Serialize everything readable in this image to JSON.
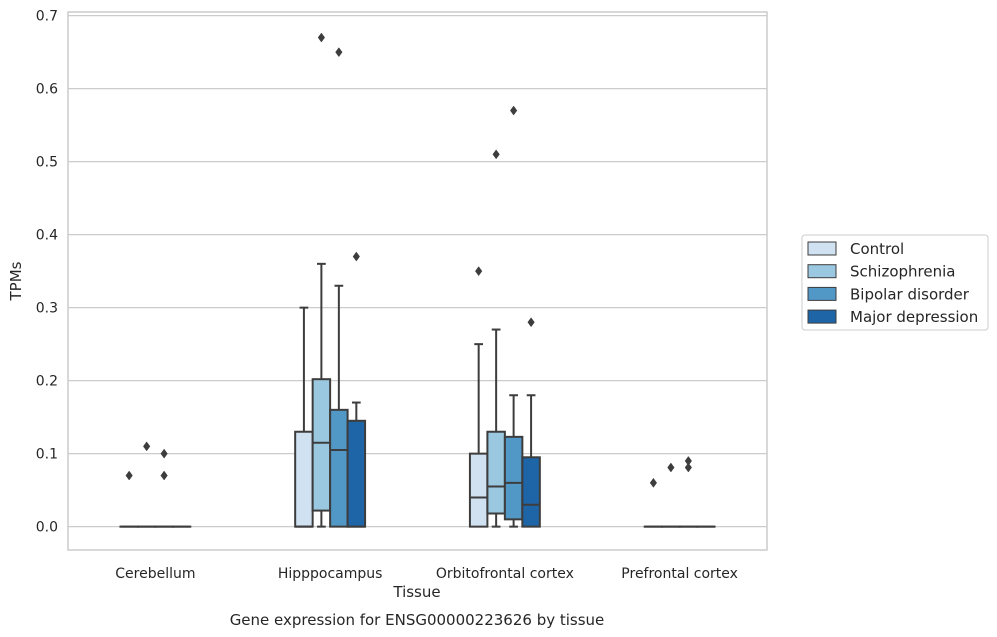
{
  "chart_data": {
    "type": "boxplot",
    "caption": "Gene expression for ENSG00000223626 by tissue",
    "xlabel": "Tissue",
    "ylabel": "TPMs",
    "ylim": [
      -0.032,
      0.705
    ],
    "yticks": [
      0.0,
      0.1,
      0.2,
      0.3,
      0.4,
      0.5,
      0.6,
      0.7
    ],
    "ytick_labels": [
      "0.0",
      "0.1",
      "0.2",
      "0.3",
      "0.4",
      "0.5",
      "0.6",
      "0.7"
    ],
    "grid": true,
    "legend_position": "right",
    "categories": [
      "Cerebellum",
      "Hipppocampus",
      "Orbitofrontal cortex",
      "Prefrontal cortex"
    ],
    "series": [
      {
        "name": "Control",
        "color": "#d0e1f2",
        "boxes": [
          {
            "q1": 0.0,
            "median": 0.0,
            "q3": 0.0,
            "whisker_low": 0.0,
            "whisker_high": 0.0,
            "outliers": [
              0.07
            ]
          },
          {
            "q1": 0.0,
            "median": 0.0,
            "q3": 0.13,
            "whisker_low": 0.0,
            "whisker_high": 0.3,
            "outliers": []
          },
          {
            "q1": 0.0,
            "median": 0.04,
            "q3": 0.1,
            "whisker_low": 0.0,
            "whisker_high": 0.25,
            "outliers": [
              0.35
            ]
          },
          {
            "q1": 0.0,
            "median": 0.0,
            "q3": 0.0,
            "whisker_low": 0.0,
            "whisker_high": 0.0,
            "outliers": [
              0.06
            ]
          }
        ]
      },
      {
        "name": "Schizophrenia",
        "color": "#9ac8e0",
        "boxes": [
          {
            "q1": 0.0,
            "median": 0.0,
            "q3": 0.0,
            "whisker_low": 0.0,
            "whisker_high": 0.0,
            "outliers": [
              0.11
            ]
          },
          {
            "q1": 0.022,
            "median": 0.115,
            "q3": 0.202,
            "whisker_low": 0.0,
            "whisker_high": 0.36,
            "outliers": [
              0.67
            ]
          },
          {
            "q1": 0.018,
            "median": 0.055,
            "q3": 0.13,
            "whisker_low": 0.0,
            "whisker_high": 0.27,
            "outliers": [
              0.51
            ]
          },
          {
            "q1": 0.0,
            "median": 0.0,
            "q3": 0.0,
            "whisker_low": 0.0,
            "whisker_high": 0.0,
            "outliers": [
              0.081
            ]
          }
        ]
      },
      {
        "name": "Bipolar disorder",
        "color": "#5198c6",
        "boxes": [
          {
            "q1": 0.0,
            "median": 0.0,
            "q3": 0.0,
            "whisker_low": 0.0,
            "whisker_high": 0.0,
            "outliers": [
              0.07,
              0.1
            ]
          },
          {
            "q1": 0.0,
            "median": 0.105,
            "q3": 0.16,
            "whisker_low": 0.0,
            "whisker_high": 0.33,
            "outliers": [
              0.65
            ]
          },
          {
            "q1": 0.01,
            "median": 0.06,
            "q3": 0.123,
            "whisker_low": 0.0,
            "whisker_high": 0.18,
            "outliers": [
              0.57
            ]
          },
          {
            "q1": 0.0,
            "median": 0.0,
            "q3": 0.0,
            "whisker_low": 0.0,
            "whisker_high": 0.0,
            "outliers": [
              0.081,
              0.09
            ]
          }
        ]
      },
      {
        "name": "Major depression",
        "color": "#1e65a7",
        "boxes": [
          {
            "q1": 0.0,
            "median": 0.0,
            "q3": 0.0,
            "whisker_low": 0.0,
            "whisker_high": 0.0,
            "outliers": []
          },
          {
            "q1": 0.0,
            "median": 0.0,
            "q3": 0.145,
            "whisker_low": 0.0,
            "whisker_high": 0.17,
            "outliers": [
              0.37
            ]
          },
          {
            "q1": 0.0,
            "median": 0.03,
            "q3": 0.095,
            "whisker_low": 0.0,
            "whisker_high": 0.18,
            "outliers": [
              0.28
            ]
          },
          {
            "q1": 0.0,
            "median": 0.0,
            "q3": 0.0,
            "whisker_low": 0.0,
            "whisker_high": 0.0,
            "outliers": []
          }
        ]
      }
    ]
  }
}
